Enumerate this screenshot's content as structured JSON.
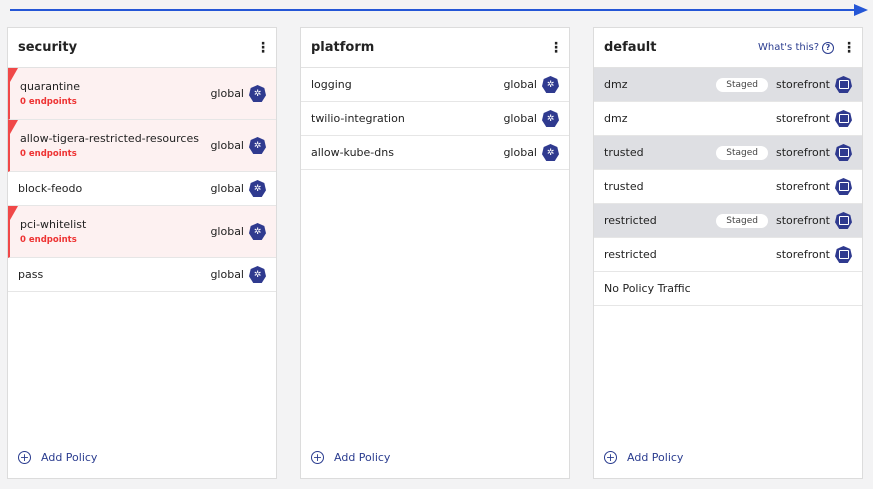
{
  "accent": "#2456d6",
  "tiers": [
    {
      "title": "security",
      "add_label": "Add Policy",
      "policies": [
        {
          "name": "quarantine",
          "scope": "global",
          "warning": "0 endpoints"
        },
        {
          "name": "allow-tigera-restricted-resources",
          "scope": "global",
          "warning": "0 endpoints"
        },
        {
          "name": "block-feodo",
          "scope": "global"
        },
        {
          "name": "pci-whitelist",
          "scope": "global",
          "warning": "0 endpoints"
        },
        {
          "name": "pass",
          "scope": "global"
        }
      ]
    },
    {
      "title": "platform",
      "add_label": "Add Policy",
      "policies": [
        {
          "name": "logging",
          "scope": "global"
        },
        {
          "name": "twilio-integration",
          "scope": "global"
        },
        {
          "name": "allow-kube-dns",
          "scope": "global"
        }
      ]
    },
    {
      "title": "default",
      "help": "What's this?",
      "add_label": "Add Policy",
      "policies": [
        {
          "name": "dmz",
          "scope": "storefront",
          "badge": "Staged"
        },
        {
          "name": "dmz",
          "scope": "storefront"
        },
        {
          "name": "trusted",
          "scope": "storefront",
          "badge": "Staged"
        },
        {
          "name": "trusted",
          "scope": "storefront"
        },
        {
          "name": "restricted",
          "scope": "storefront",
          "badge": "Staged"
        },
        {
          "name": "restricted",
          "scope": "storefront"
        },
        {
          "name": "No Policy Traffic"
        }
      ]
    }
  ]
}
